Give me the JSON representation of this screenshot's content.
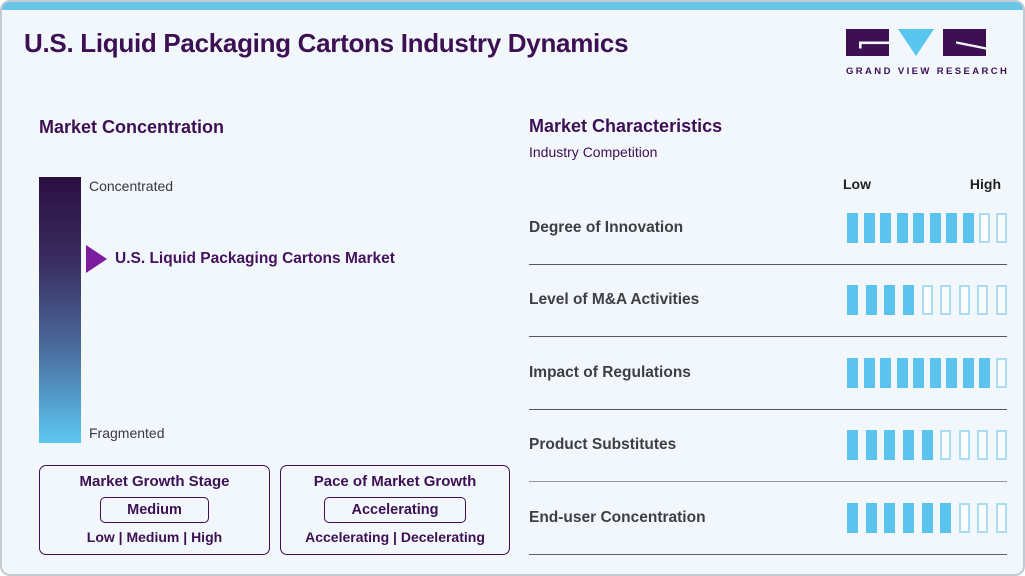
{
  "page": {
    "title": "U.S. Liquid Packaging Cartons Industry Dynamics"
  },
  "logo": {
    "brand": "GRAND VIEW RESEARCH"
  },
  "colors": {
    "accent_blue": "#5ac4ee",
    "brand_purple": "#3c1053",
    "marker_purple": "#7c1ca1",
    "topbar_blue": "#68c5ea",
    "background": "#f2f7fb"
  },
  "market_concentration": {
    "heading": "Market Concentration",
    "scale_top": "Concentrated",
    "scale_bottom": "Fragmented",
    "marker_label": "U.S. Liquid Packaging Cartons Market",
    "marker_position_pct_from_top": 31
  },
  "growth_boxes": [
    {
      "title": "Market Growth Stage",
      "value": "Medium",
      "options": "Low | Medium | High"
    },
    {
      "title": "Pace of Market Growth",
      "value": "Accelerating",
      "options": "Accelerating | Decelerating"
    }
  ],
  "market_characteristics": {
    "heading": "Market Characteristics",
    "subheading": "Industry Competition",
    "scale_low": "Low",
    "scale_high": "High",
    "rows": [
      {
        "label": "Degree of Innovation",
        "filled": 8,
        "total": 10
      },
      {
        "label": "Level of M&A Activities",
        "filled": 4,
        "total": 9
      },
      {
        "label": "Impact of Regulations",
        "filled": 9,
        "total": 10
      },
      {
        "label": "Product Substitutes",
        "filled": 5,
        "total": 9
      },
      {
        "label": "End-user Concentration",
        "filled": 6,
        "total": 9
      }
    ]
  },
  "chart_data": {
    "type": "bar",
    "title": "U.S. Liquid Packaging Cartons Industry Dynamics",
    "subtitle": "Market Characteristics - Industry Competition",
    "categories": [
      "Degree of Innovation",
      "Level of M&A Activities",
      "Impact of Regulations",
      "Product Substitutes",
      "End-user Concentration"
    ],
    "series": [
      {
        "name": "rating_filled_segments",
        "values": [
          8,
          4,
          9,
          5,
          6
        ]
      }
    ],
    "segment_totals": [
      10,
      9,
      10,
      9,
      9
    ],
    "scale_labels": [
      "Low",
      "High"
    ],
    "legend_position": "none",
    "grid": false,
    "companion_scales": {
      "market_concentration": {
        "range": [
          "Concentrated",
          "Fragmented"
        ],
        "marker": "U.S. Liquid Packaging Cartons Market",
        "marker_pct_from_concentrated": 31
      },
      "market_growth_stage": {
        "value": "Medium",
        "options": [
          "Low",
          "Medium",
          "High"
        ]
      },
      "pace_of_market_growth": {
        "value": "Accelerating",
        "options": [
          "Accelerating",
          "Decelerating"
        ]
      }
    }
  }
}
